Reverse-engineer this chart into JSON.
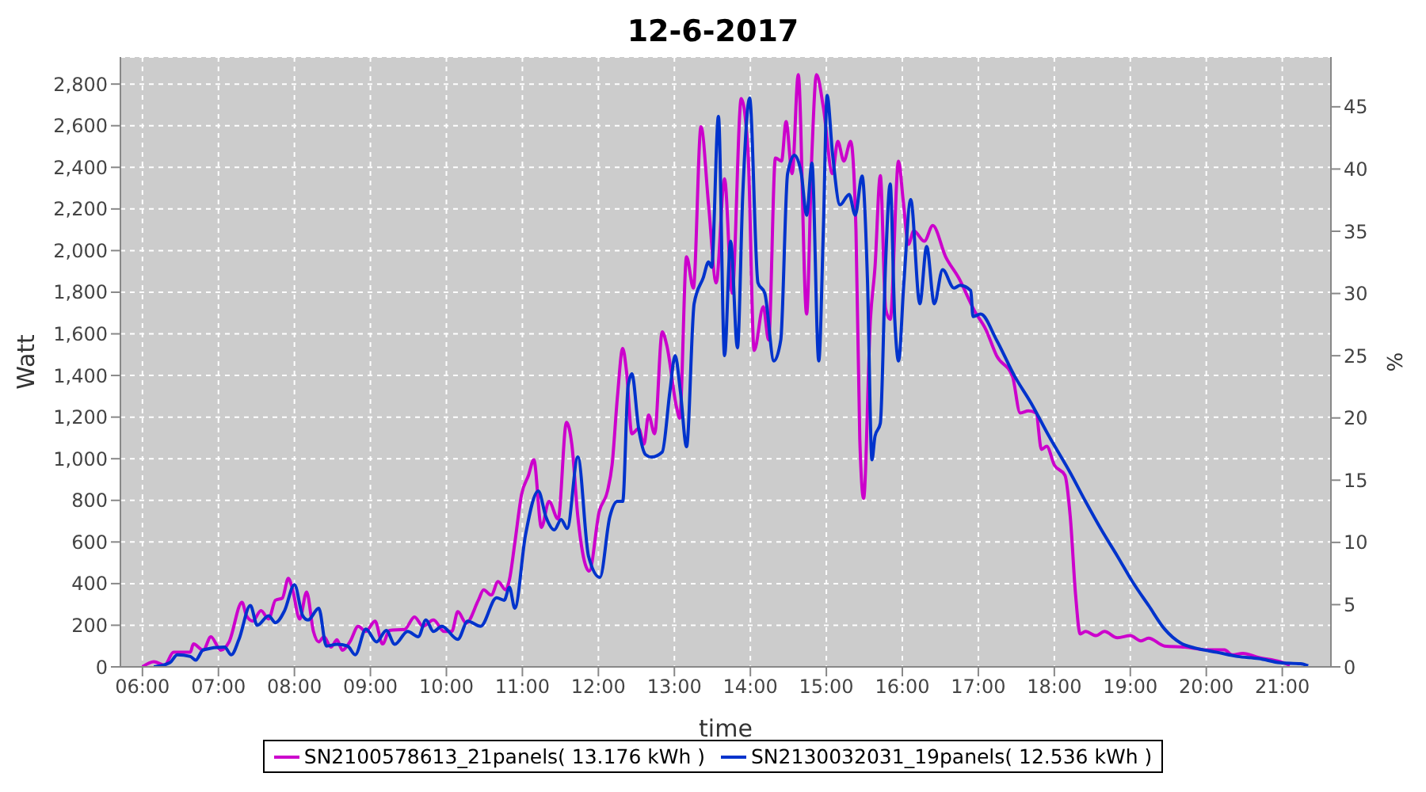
{
  "chart_data": {
    "type": "line",
    "title": "12-6-2017",
    "xlabel": "time",
    "ylabel": "Watt",
    "y2label": "%",
    "xlim": [
      5.71,
      21.64
    ],
    "xticks": [
      {
        "value": 6,
        "label": "06:00"
      },
      {
        "value": 7,
        "label": "07:00"
      },
      {
        "value": 8,
        "label": "08:00"
      },
      {
        "value": 9,
        "label": "09:00"
      },
      {
        "value": 10,
        "label": "10:00"
      },
      {
        "value": 11,
        "label": "11:00"
      },
      {
        "value": 12,
        "label": "12:00"
      },
      {
        "value": 13,
        "label": "13:00"
      },
      {
        "value": 14,
        "label": "14:00"
      },
      {
        "value": 15,
        "label": "15:00"
      },
      {
        "value": 16,
        "label": "16:00"
      },
      {
        "value": 17,
        "label": "17:00"
      },
      {
        "value": 18,
        "label": "18:00"
      },
      {
        "value": 19,
        "label": "19:00"
      },
      {
        "value": 20,
        "label": "20:00"
      },
      {
        "value": 21,
        "label": "21:00"
      }
    ],
    "ylim": [
      0,
      2930
    ],
    "yticks": [
      0,
      200,
      400,
      600,
      800,
      {
        "value": 1000,
        "label": "1,000"
      },
      {
        "value": 1200,
        "label": "1,200"
      },
      {
        "value": 1400,
        "label": "1,400"
      },
      {
        "value": 1600,
        "label": "1,600"
      },
      {
        "value": 1800,
        "label": "1,800"
      },
      {
        "value": 2000,
        "label": "2,000"
      },
      {
        "value": 2200,
        "label": "2,200"
      },
      {
        "value": 2400,
        "label": "2,400"
      },
      {
        "value": 2600,
        "label": "2,600"
      },
      {
        "value": 2800,
        "label": "2,800"
      }
    ],
    "y2lim": [
      0,
      49
    ],
    "y2ticks": [
      0,
      5,
      10,
      15,
      20,
      25,
      30,
      35,
      40,
      45
    ],
    "grid": true,
    "legend": "bottom",
    "marker": "none",
    "line_style": "solid",
    "series": [
      {
        "name": "SN2100578613_21panels( 13.176 kWh )",
        "color": "#cc00cc",
        "x": [
          6.0,
          6.15,
          6.29,
          6.41,
          6.63,
          6.67,
          6.8,
          6.9,
          7.03,
          7.14,
          7.31,
          7.37,
          7.45,
          7.56,
          7.66,
          7.75,
          7.84,
          7.92,
          7.97,
          8.07,
          8.16,
          8.25,
          8.32,
          8.39,
          8.48,
          8.56,
          8.63,
          8.73,
          8.84,
          8.94,
          9.06,
          9.16,
          9.25,
          9.45,
          9.58,
          9.69,
          9.83,
          9.97,
          10.07,
          10.15,
          10.26,
          10.42,
          10.49,
          10.59,
          10.68,
          10.78,
          10.83,
          10.9,
          10.99,
          11.08,
          11.15,
          11.25,
          11.35,
          11.47,
          11.58,
          11.65,
          11.73,
          11.88,
          12.01,
          12.12,
          12.18,
          12.25,
          12.32,
          12.37,
          12.44,
          12.53,
          12.6,
          12.66,
          12.74,
          12.84,
          12.9,
          13.03,
          13.07,
          13.16,
          13.25,
          13.35,
          13.45,
          13.55,
          13.66,
          13.76,
          13.88,
          13.97,
          14.05,
          14.17,
          14.24,
          14.33,
          14.41,
          14.47,
          14.55,
          14.63,
          14.74,
          14.81,
          14.87,
          14.96,
          15.08,
          15.15,
          15.23,
          15.32,
          15.39,
          15.44,
          15.49,
          15.58,
          15.64,
          15.71,
          15.78,
          15.84,
          15.95,
          16.01,
          16.08,
          16.15,
          16.29,
          16.4,
          16.57,
          16.74,
          16.95,
          17.1,
          17.24,
          17.45,
          17.55,
          17.66,
          17.76,
          17.83,
          17.9,
          18.0,
          18.14,
          18.21,
          18.28,
          18.34,
          18.41,
          18.55,
          18.66,
          18.83,
          19.0,
          19.14,
          19.24,
          19.45,
          19.72,
          20.0,
          20.24,
          20.34,
          20.48,
          20.69,
          20.97,
          21.1
        ],
        "values": [
          0,
          25,
          8,
          70,
          70,
          110,
          80,
          145,
          80,
          120,
          310,
          245,
          220,
          270,
          230,
          320,
          330,
          425,
          380,
          230,
          360,
          170,
          120,
          145,
          95,
          130,
          80,
          120,
          195,
          170,
          220,
          110,
          175,
          180,
          240,
          195,
          225,
          170,
          170,
          265,
          210,
          320,
          370,
          345,
          410,
          370,
          420,
          595,
          830,
          920,
          995,
          670,
          795,
          710,
          1175,
          1070,
          720,
          460,
          745,
          845,
          970,
          1295,
          1530,
          1420,
          1120,
          1145,
          1070,
          1210,
          1120,
          1610,
          1545,
          1245,
          1195,
          1970,
          1820,
          2595,
          2220,
          1845,
          2345,
          1795,
          2730,
          2470,
          1520,
          1730,
          1570,
          2445,
          2430,
          2620,
          2370,
          2845,
          1695,
          2470,
          2845,
          2690,
          2370,
          2525,
          2430,
          2525,
          2095,
          1095,
          810,
          1670,
          1920,
          2360,
          1720,
          1670,
          2430,
          2245,
          2030,
          2095,
          2045,
          2120,
          1970,
          1870,
          1710,
          1620,
          1495,
          1395,
          1220,
          1230,
          1220,
          1045,
          1060,
          970,
          920,
          720,
          345,
          158,
          170,
          150,
          170,
          140,
          150,
          125,
          138,
          100,
          95,
          82,
          82,
          58,
          65,
          45,
          25,
          8
        ]
      },
      {
        "name": "SN2130032031_19panels( 12.536 kWh )",
        "color": "#0033cc",
        "x": [
          6.15,
          6.36,
          6.46,
          6.63,
          6.7,
          6.8,
          7.08,
          7.17,
          7.27,
          7.42,
          7.51,
          7.66,
          7.75,
          7.87,
          8.0,
          8.11,
          8.18,
          8.32,
          8.42,
          8.56,
          8.7,
          8.8,
          8.94,
          9.08,
          9.21,
          9.32,
          9.49,
          9.63,
          9.73,
          9.83,
          9.94,
          10.15,
          10.28,
          10.45,
          10.66,
          10.76,
          10.83,
          10.9,
          11.04,
          11.21,
          11.31,
          11.42,
          11.51,
          11.59,
          11.73,
          11.87,
          12.02,
          12.15,
          12.25,
          12.32,
          12.39,
          12.44,
          12.53,
          12.62,
          12.7,
          12.84,
          12.94,
          13.01,
          13.08,
          13.16,
          13.26,
          13.38,
          13.45,
          13.49,
          13.58,
          13.66,
          13.74,
          13.83,
          13.9,
          13.99,
          14.1,
          14.19,
          14.31,
          14.4,
          14.49,
          14.58,
          14.67,
          14.74,
          14.81,
          14.9,
          14.96,
          15.01,
          15.08,
          15.18,
          15.3,
          15.38,
          15.47,
          15.54,
          15.6,
          15.64,
          15.71,
          15.78,
          15.84,
          15.9,
          15.95,
          16.02,
          16.11,
          16.23,
          16.32,
          16.42,
          16.53,
          16.68,
          16.76,
          16.9,
          16.93,
          17.03,
          17.24,
          17.48,
          17.69,
          17.93,
          18.21,
          18.41,
          18.62,
          18.83,
          19.03,
          19.24,
          19.45,
          19.66,
          19.86,
          20.14,
          20.41,
          20.69,
          20.97,
          21.24,
          21.34
        ],
        "values": [
          0,
          20,
          58,
          50,
          32,
          82,
          95,
          58,
          132,
          295,
          200,
          245,
          212,
          270,
          395,
          245,
          225,
          282,
          100,
          108,
          100,
          58,
          182,
          120,
          175,
          108,
          170,
          145,
          225,
          170,
          195,
          132,
          220,
          195,
          332,
          320,
          382,
          282,
          632,
          845,
          720,
          658,
          708,
          665,
          1008,
          532,
          430,
          720,
          795,
          795,
          1345,
          1408,
          1145,
          1020,
          1008,
          1032,
          1320,
          1495,
          1320,
          1058,
          1745,
          1870,
          1945,
          1920,
          2645,
          1495,
          2045,
          1533,
          2270,
          2733,
          1845,
          1795,
          1470,
          1570,
          2370,
          2458,
          2370,
          2170,
          2420,
          1470,
          2095,
          2745,
          2470,
          2220,
          2270,
          2170,
          2358,
          1870,
          995,
          1108,
          1170,
          1945,
          2320,
          1670,
          1470,
          1845,
          2245,
          1745,
          2020,
          1745,
          1908,
          1820,
          1833,
          1808,
          1683,
          1695,
          1570,
          1395,
          1270,
          1108,
          932,
          795,
          658,
          532,
          408,
          295,
          182,
          115,
          90,
          70,
          50,
          40,
          20,
          15,
          5
        ]
      }
    ]
  }
}
